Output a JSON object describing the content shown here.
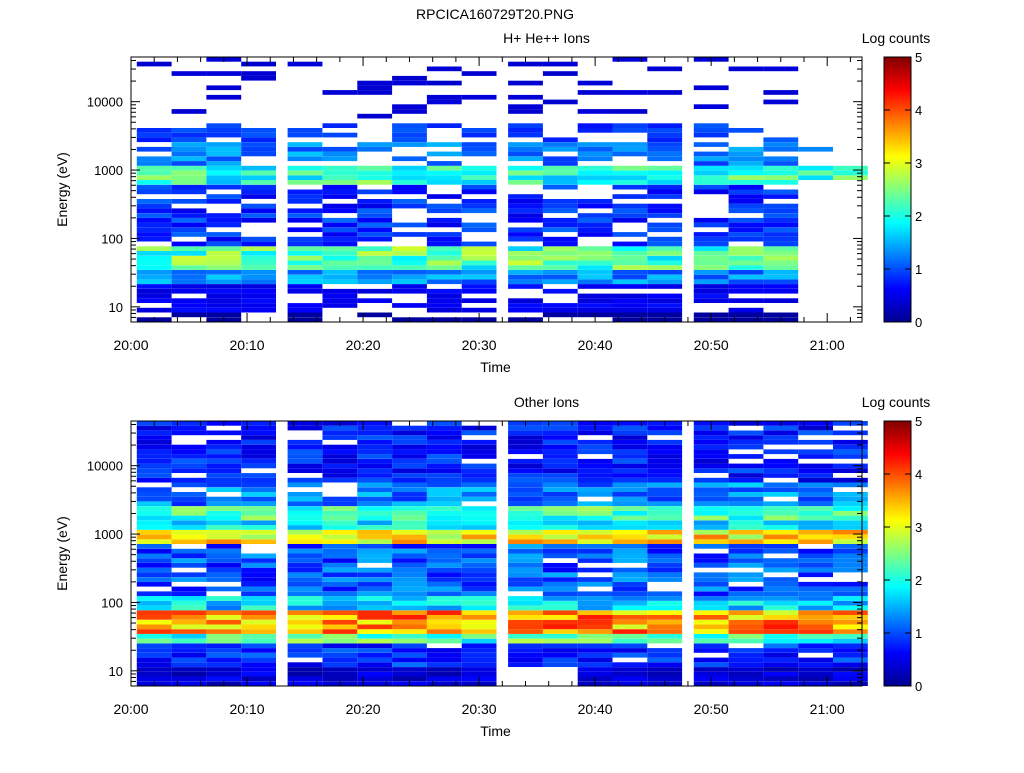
{
  "title": "RPCICA160729T20.PNG",
  "colorbar_label": "Log counts",
  "colorbar_ticks": [
    "0",
    "1",
    "2",
    "3",
    "4",
    "5"
  ],
  "chart_data": [
    {
      "type": "heatmap",
      "title": "H+ He++ Ions",
      "xlabel": "Time",
      "ylabel": "Energy (eV)",
      "xlim": [
        "20:00",
        "21:03"
      ],
      "ylim": [
        6,
        45000
      ],
      "yscale": "log",
      "x_tick_labels": [
        "20:00",
        "20:10",
        "20:20",
        "20:30",
        "20:40",
        "20:50",
        "21:00"
      ],
      "y_tick_labels": [
        "10",
        "100",
        "1000",
        "10000"
      ],
      "colorbar_range": [
        0,
        5
      ],
      "time_bins": [
        "20:02",
        "20:05",
        "20:08",
        "20:11",
        "20:15",
        "20:18",
        "20:21",
        "20:24",
        "20:27",
        "20:30",
        "20:34",
        "20:37",
        "20:40",
        "20:43",
        "20:46",
        "20:50",
        "20:53",
        "20:56",
        "20:59",
        "21:02"
      ]
    },
    {
      "type": "heatmap",
      "title": "Other Ions",
      "xlabel": "Time",
      "ylabel": "Energy (eV)",
      "xlim": [
        "20:00",
        "21:03"
      ],
      "ylim": [
        6,
        45000
      ],
      "yscale": "log",
      "x_tick_labels": [
        "20:00",
        "20:10",
        "20:20",
        "20:30",
        "20:40",
        "20:50",
        "21:00"
      ],
      "y_tick_labels": [
        "10",
        "100",
        "1000",
        "10000"
      ],
      "colorbar_range": [
        0,
        5
      ],
      "time_bins": [
        "20:02",
        "20:05",
        "20:08",
        "20:11",
        "20:15",
        "20:18",
        "20:21",
        "20:24",
        "20:27",
        "20:30",
        "20:34",
        "20:37",
        "20:40",
        "20:43",
        "20:46",
        "20:50",
        "20:53",
        "20:56",
        "20:59",
        "21:02"
      ]
    }
  ]
}
